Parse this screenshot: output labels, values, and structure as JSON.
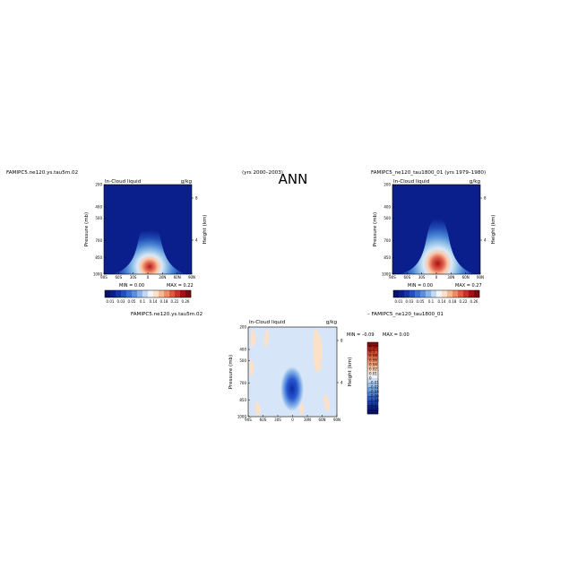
{
  "figure_title": "ANN",
  "colors": {
    "navy": "#0a1e8c",
    "white": "#ffffff",
    "red": "#a50f15",
    "diff_bg": "#d6e6f8",
    "diff_pos": "#fde0c8"
  },
  "chart_data": [
    {
      "type": "heatmap",
      "left_title": "FAMIPC5.ne120.ys.tau5m.02",
      "right_title": "(yrs 2000–2003)",
      "plot_label": "In-Cloud liquid",
      "units": "g/kg",
      "xlabel": "",
      "ylabel": "Pressure (mb)",
      "ylabel_right": "Height (km)",
      "x_ticks": [
        "90S",
        "60S",
        "30S",
        "0",
        "30N",
        "60N",
        "90N"
      ],
      "y_ticks": [
        "200",
        "400",
        "500",
        "700",
        "850",
        "1000"
      ],
      "y_right_ticks": [
        "8",
        "4"
      ],
      "ylim": [
        1000,
        200
      ],
      "min_text": "MIN = 0.00",
      "max_text": "MAX = 0.22",
      "colorbar_levels": [
        0.01,
        0.02,
        0.03,
        0.05,
        0.07,
        0.09,
        0.1,
        0.12,
        0.14,
        0.16,
        0.18,
        0.2,
        0.22,
        0.24,
        0.26
      ],
      "colorbar_labels": [
        "0.01",
        "0.03",
        "0.05",
        "0.1",
        "0.14",
        "0.18",
        "0.22",
        "0.26"
      ]
    },
    {
      "type": "heatmap",
      "left_title": "FAMIPC5_ne120_tau1800_01 (yrs 1979–1980)",
      "right_title": "",
      "plot_label": "In-Cloud liquid",
      "units": "g/kg",
      "xlabel": "",
      "ylabel": "Pressure (mb)",
      "ylabel_right": "Height (km)",
      "x_ticks": [
        "90S",
        "60S",
        "30S",
        "0",
        "30N",
        "60N",
        "90N"
      ],
      "y_ticks": [
        "200",
        "400",
        "500",
        "700",
        "850",
        "1000"
      ],
      "y_right_ticks": [
        "8",
        "4"
      ],
      "ylim": [
        1000,
        200
      ],
      "min_text": "MIN = 0.00",
      "max_text": "MAX = 0.27",
      "colorbar_levels": [
        0.01,
        0.02,
        0.03,
        0.05,
        0.07,
        0.09,
        0.1,
        0.12,
        0.14,
        0.16,
        0.18,
        0.2,
        0.22,
        0.24,
        0.26
      ],
      "colorbar_labels": [
        "0.01",
        "0.03",
        "0.05",
        "0.1",
        "0.14",
        "0.18",
        "0.22",
        "0.26"
      ]
    },
    {
      "type": "heatmap",
      "left_title": "FAMIPC5.ne120.ys.tau5m.02",
      "right_title": "– FAMIPC5_ne120_tau1800_01",
      "plot_label": "In-Cloud liquid",
      "units": "g/kg",
      "xlabel": "",
      "ylabel": "Pressure (mb)",
      "ylabel_right": "Height (km)",
      "x_ticks": [
        "90S",
        "60S",
        "30S",
        "0",
        "30N",
        "60N",
        "90N"
      ],
      "y_ticks": [
        "200",
        "400",
        "500",
        "700",
        "850",
        "1000"
      ],
      "y_right_ticks": [
        "8",
        "4"
      ],
      "ylim": [
        1000,
        200
      ],
      "min_text": "MIN = –0.09",
      "max_text": "MAX = 0.00",
      "colorbar_levels": [
        0.12,
        0.1,
        0.08,
        0.06,
        0.04,
        0.02,
        0.01,
        0,
        -0.01,
        -0.02,
        -0.04,
        -0.06,
        -0.08,
        -0.1,
        -0.12
      ],
      "colorbar_labels": [
        "0.12",
        "0.1",
        "0.08",
        "0.06",
        "0.04",
        "0.02",
        "0.01",
        "0",
        "–0.01",
        "–0.02",
        "–0.04",
        "–0.06",
        "–0.08",
        "–0.1",
        "–0.12"
      ]
    }
  ]
}
